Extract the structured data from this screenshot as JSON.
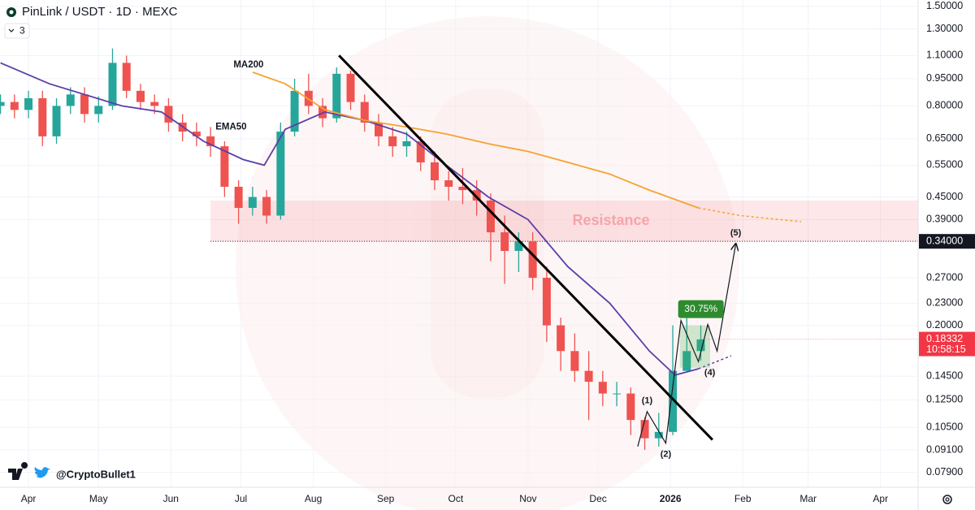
{
  "chart_data": {
    "type": "candlestick",
    "title": "PinLink / USDT · 1D · MEXC",
    "badge": "3",
    "log_scale": true,
    "grid": true,
    "xlim": [
      -12.2,
      381.1
    ],
    "ylim": [
      0.0719,
      1.562
    ],
    "xticks": [
      {
        "value": 0,
        "label": "Apr"
      },
      {
        "value": 30,
        "label": "May"
      },
      {
        "value": 61,
        "label": "Jun"
      },
      {
        "value": 91,
        "label": "Jul"
      },
      {
        "value": 122,
        "label": "Aug"
      },
      {
        "value": 153,
        "label": "Sep"
      },
      {
        "value": 183,
        "label": "Oct"
      },
      {
        "value": 214,
        "label": "Nov"
      },
      {
        "value": 244,
        "label": "Dec"
      },
      {
        "value": 275,
        "label": "2026"
      },
      {
        "value": 306,
        "label": "Feb"
      },
      {
        "value": 334,
        "label": "Mar"
      },
      {
        "value": 365,
        "label": "Apr"
      }
    ],
    "yticks": [
      {
        "value": 1.5,
        "label": "1.50000"
      },
      {
        "value": 1.3,
        "label": "1.30000"
      },
      {
        "value": 1.1,
        "label": "1.10000"
      },
      {
        "value": 0.95,
        "label": "0.95000"
      },
      {
        "value": 0.8,
        "label": "0.80000"
      },
      {
        "value": 0.65,
        "label": "0.65000"
      },
      {
        "value": 0.55,
        "label": "0.55000"
      },
      {
        "value": 0.45,
        "label": "0.45000"
      },
      {
        "value": 0.39,
        "label": "0.39000"
      },
      {
        "value": 0.27,
        "label": "0.27000"
      },
      {
        "value": 0.23,
        "label": "0.23000"
      },
      {
        "value": 0.2,
        "label": "0.20000"
      },
      {
        "value": 0.145,
        "label": "0.14500"
      },
      {
        "value": 0.125,
        "label": "0.12500"
      },
      {
        "value": 0.105,
        "label": "0.10500"
      },
      {
        "value": 0.091,
        "label": "0.09100"
      },
      {
        "value": 0.079,
        "label": "0.07900"
      }
    ],
    "up_color": "#26a69a",
    "down_color": "#ef5350",
    "candles": {
      "x": [
        -12,
        -6,
        0,
        6,
        12,
        18,
        24,
        30,
        36,
        42,
        48,
        54,
        60,
        66,
        72,
        78,
        84,
        90,
        96,
        102,
        108,
        114,
        120,
        126,
        132,
        138,
        144,
        150,
        156,
        162,
        168,
        174,
        180,
        186,
        192,
        198,
        204,
        210,
        216,
        222,
        228,
        234,
        240,
        246,
        252,
        258,
        264,
        270,
        276,
        282,
        288
      ],
      "open": [
        0.8,
        0.82,
        0.78,
        0.84,
        0.66,
        0.8,
        0.86,
        0.76,
        0.8,
        1.05,
        0.88,
        0.82,
        0.8,
        0.72,
        0.68,
        0.66,
        0.62,
        0.48,
        0.42,
        0.45,
        0.4,
        0.68,
        0.88,
        0.8,
        0.74,
        0.98,
        0.82,
        0.72,
        0.66,
        0.62,
        0.64,
        0.56,
        0.5,
        0.48,
        0.47,
        0.44,
        0.36,
        0.32,
        0.34,
        0.27,
        0.2,
        0.17,
        0.15,
        0.14,
        0.13,
        0.13,
        0.11,
        0.098,
        0.102,
        0.15,
        0.17
      ],
      "high": [
        0.86,
        0.86,
        0.88,
        0.88,
        0.84,
        0.9,
        0.9,
        0.85,
        1.15,
        1.1,
        0.92,
        0.86,
        0.84,
        0.76,
        0.72,
        0.7,
        0.64,
        0.5,
        0.48,
        0.47,
        0.72,
        0.95,
        0.98,
        0.84,
        1.02,
        1.0,
        0.86,
        0.76,
        0.7,
        0.68,
        0.66,
        0.6,
        0.53,
        0.54,
        0.5,
        0.46,
        0.4,
        0.36,
        0.36,
        0.29,
        0.21,
        0.19,
        0.17,
        0.15,
        0.14,
        0.135,
        0.112,
        0.115,
        0.2,
        0.21,
        0.2
      ],
      "low": [
        0.76,
        0.74,
        0.74,
        0.62,
        0.63,
        0.76,
        0.72,
        0.72,
        0.78,
        0.84,
        0.78,
        0.76,
        0.68,
        0.64,
        0.62,
        0.58,
        0.45,
        0.38,
        0.4,
        0.38,
        0.39,
        0.66,
        0.76,
        0.7,
        0.72,
        0.78,
        0.68,
        0.62,
        0.58,
        0.58,
        0.53,
        0.47,
        0.44,
        0.43,
        0.4,
        0.3,
        0.26,
        0.28,
        0.25,
        0.18,
        0.15,
        0.14,
        0.11,
        0.12,
        0.12,
        0.1,
        0.091,
        0.093,
        0.1,
        0.155,
        0.16
      ],
      "close": [
        0.82,
        0.78,
        0.84,
        0.66,
        0.8,
        0.86,
        0.76,
        0.8,
        1.05,
        0.88,
        0.82,
        0.8,
        0.72,
        0.68,
        0.66,
        0.62,
        0.48,
        0.42,
        0.45,
        0.4,
        0.68,
        0.88,
        0.8,
        0.74,
        0.98,
        0.82,
        0.72,
        0.66,
        0.62,
        0.64,
        0.56,
        0.5,
        0.48,
        0.47,
        0.44,
        0.36,
        0.32,
        0.34,
        0.27,
        0.2,
        0.17,
        0.15,
        0.14,
        0.13,
        0.13,
        0.11,
        0.098,
        0.102,
        0.15,
        0.17,
        0.183
      ]
    },
    "indicators": [
      {
        "name": "EMA50",
        "color": "#5b3fa8",
        "x": [
          -12,
          9,
          40,
          57,
          75,
          92,
          101,
          110,
          127,
          144,
          162,
          179,
          197,
          214,
          231,
          249,
          266,
          277,
          287
        ],
        "values": [
          1.05,
          0.92,
          0.8,
          0.77,
          0.64,
          0.57,
          0.55,
          0.69,
          0.77,
          0.73,
          0.67,
          0.55,
          0.45,
          0.39,
          0.29,
          0.23,
          0.17,
          0.146,
          0.152
        ],
        "projection": {
          "x": [
            287,
            301
          ],
          "values": [
            0.152,
            0.165
          ]
        }
      },
      {
        "name": "MA200",
        "color": "#f5a331",
        "x": [
          96,
          110,
          127,
          144,
          162,
          179,
          197,
          214,
          231,
          249,
          266,
          287
        ],
        "values": [
          0.99,
          0.92,
          0.78,
          0.73,
          0.7,
          0.67,
          0.63,
          0.6,
          0.56,
          0.52,
          0.47,
          0.42
        ],
        "projection": {
          "x": [
            287,
            305,
            331
          ],
          "values": [
            0.42,
            0.4,
            0.385
          ]
        }
      }
    ],
    "trendline": {
      "x": [
        133,
        293
      ],
      "values": [
        1.1,
        0.097
      ]
    },
    "zone": {
      "label": "Resistance",
      "x": [
        78,
        381.1
      ],
      "values": [
        0.34,
        0.44
      ]
    },
    "level": {
      "value": 0.34,
      "label": "0.34000"
    },
    "waves": {
      "x": [
        261,
        265,
        273,
        279.5,
        287,
        291,
        295,
        303
      ],
      "values": [
        0.093,
        0.116,
        0.095,
        0.206,
        0.159,
        0.201,
        0.17,
        0.335
      ],
      "labels": [
        null,
        "(1)",
        "(2)",
        null,
        "(4)",
        null,
        null,
        "(5)"
      ]
    },
    "measure": {
      "label": "30.75%",
      "x": [
        279,
        292
      ],
      "values": [
        0.153,
        0.2
      ]
    },
    "last_price": {
      "value": 0.18332,
      "countdown": "10:58:15"
    },
    "watermark": "@CryptoBullet1"
  }
}
